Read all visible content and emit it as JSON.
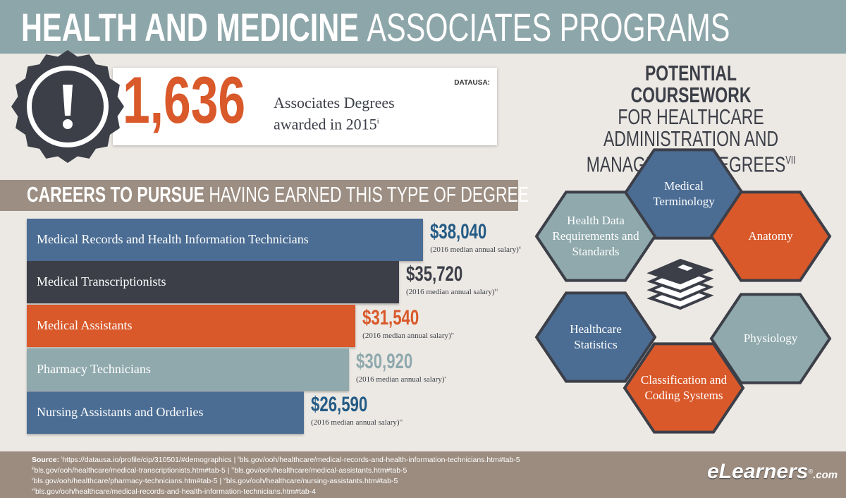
{
  "header": {
    "title_bold": "HEALTH AND MEDICINE",
    "title_rest": "ASSOCIATES PROGRAMS"
  },
  "stat": {
    "number": "1,636",
    "line1": "Associates Degrees",
    "line2": "awarded in 2015",
    "ref": "i",
    "source": "DATAUSA:"
  },
  "careers": {
    "heading_bold": "CAREERS TO PURSUE",
    "heading_rest": "HAVING EARNED THIS TYPE OF DEGREE",
    "items": [
      {
        "name": "Medical Records and Health Information Technicians",
        "salary": 38040,
        "salary_label": "$38,040",
        "note": "(2016 median annual salary)",
        "ref": "ii",
        "color": "#4b6d94",
        "label_color": "#245b85"
      },
      {
        "name": "Medical Transcriptionists",
        "salary": 35720,
        "salary_label": "$35,720",
        "note": "(2016 median annual salary)",
        "ref": "iii",
        "color": "#3c3f48",
        "label_color": "#3c3f48"
      },
      {
        "name": "Medical Assistants",
        "salary": 31540,
        "salary_label": "$31,540",
        "note": "(2016 median annual salary)",
        "ref": "iv",
        "color": "#d9592a",
        "label_color": "#d9592a"
      },
      {
        "name": "Pharmacy Technicians",
        "salary": 30920,
        "salary_label": "$30,920",
        "note": "(2016 median annual salary)",
        "ref": "v",
        "color": "#8fa9ad",
        "label_color": "#8fa9ad"
      },
      {
        "name": "Nursing Assistants and Orderlies",
        "salary": 26590,
        "salary_label": "$26,590",
        "note": "(2016 median annual salary)",
        "ref": "vi",
        "color": "#4b6d94",
        "label_color": "#245b85"
      }
    ]
  },
  "coursework": {
    "title_bold": "POTENTIAL COURSEWORK",
    "title_rest": "FOR HEALTHCARE ADMINISTRATION AND MANAGEMENT DEGREES",
    "ref": "VII",
    "nodes": [
      {
        "label": "Medical Terminology",
        "color": "#4b6d94"
      },
      {
        "label": "Anatomy",
        "color": "#d9592a"
      },
      {
        "label": "Physiology",
        "color": "#8fa9ad"
      },
      {
        "label": "Classification and Coding Systems",
        "color": "#d9592a"
      },
      {
        "label": "Healthcare Statistics",
        "color": "#4b6d94"
      },
      {
        "label": "Health Data Requirements and Standards",
        "color": "#8fa9ad"
      }
    ]
  },
  "footer": {
    "label": "Source:",
    "lines": [
      [
        {
          "ref": "i",
          "text": "https://datausa.io/profile/cip/310501/#demographics | "
        },
        {
          "ref": "ii",
          "text": "bls.gov/ooh/healthcare/medical-records-and-health-information-technicians.htm#tab-5"
        }
      ],
      [
        {
          "ref": "iii",
          "text": "bls.gov/ooh/healthcare/medical-transcriptionists.htm#tab-5 | "
        },
        {
          "ref": "iv",
          "text": "bls.gov/ooh/healthcare/medical-assistants.htm#tab-5"
        }
      ],
      [
        {
          "ref": "v",
          "text": "bls.gov/ooh/healthcare/pharmacy-technicians.htm#tab-5 | "
        },
        {
          "ref": "vi",
          "text": "bls.gov/ooh/healthcare/nursing-assistants.htm#tab-5"
        }
      ],
      [
        {
          "ref": "vii",
          "text": "bls.gov/ooh/healthcare/medical-records-and-health-information-technicians.htm#tab-4"
        }
      ]
    ],
    "logo_main": "eLearners",
    "logo_mark": "®",
    "logo_suffix": ".com"
  }
}
